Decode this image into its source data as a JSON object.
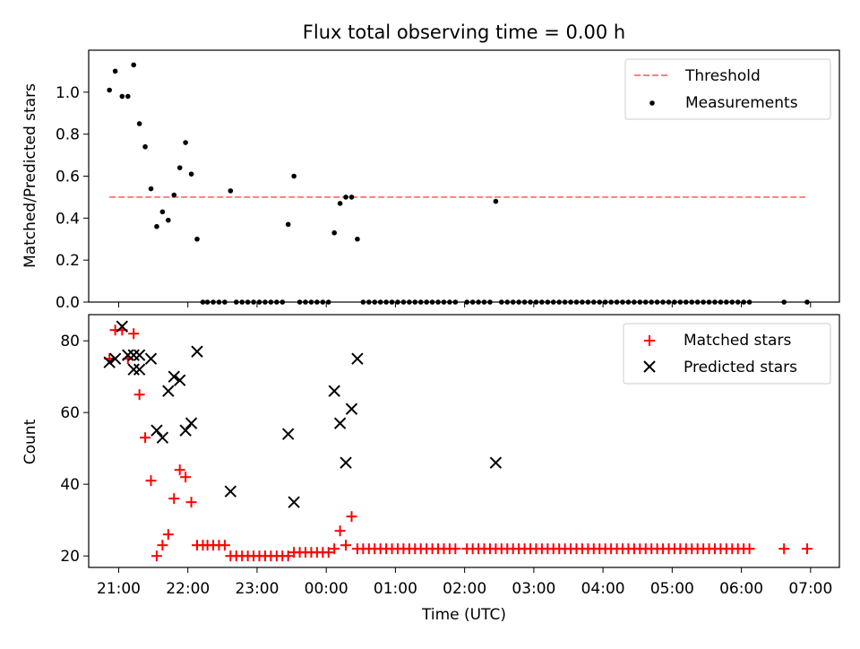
{
  "title": "Flux total observing time = 0.00 h",
  "colors": {
    "threshold": "#ff7f7f",
    "measurement": "#000000",
    "matched": "#ff0000",
    "predicted": "#000000"
  },
  "chart_data": [
    {
      "type": "scatter",
      "ylabel": "Matched/Predicted stars",
      "xlabel": "",
      "ylim": [
        0,
        1.2
      ],
      "xlim": [
        "20:34",
        "07:25"
      ],
      "yticks": [
        "0.0",
        "0.2",
        "0.4",
        "0.6",
        "0.8",
        "1.0"
      ],
      "legend": {
        "placement": "top-right",
        "entries": [
          "Threshold",
          "Measurements"
        ]
      },
      "threshold": {
        "name": "Threshold",
        "y": 0.5,
        "x_start": "20:52",
        "x_end": "06:57"
      },
      "series": [
        {
          "name": "Measurements",
          "points": [
            [
              "20:52",
              1.01
            ],
            [
              "20:57",
              1.1
            ],
            [
              "21:03",
              0.98
            ],
            [
              "21:08",
              0.98
            ],
            [
              "21:13",
              1.13
            ],
            [
              "21:18",
              0.85
            ],
            [
              "21:23",
              0.74
            ],
            [
              "21:28",
              0.54
            ],
            [
              "21:33",
              0.36
            ],
            [
              "21:38",
              0.43
            ],
            [
              "21:43",
              0.39
            ],
            [
              "21:48",
              0.51
            ],
            [
              "21:53",
              0.64
            ],
            [
              "21:58",
              0.76
            ],
            [
              "22:03",
              0.61
            ],
            [
              "22:08",
              0.3
            ],
            [
              "22:13",
              0
            ],
            [
              "22:17",
              0
            ],
            [
              "22:22",
              0
            ],
            [
              "22:27",
              0
            ],
            [
              "22:32",
              0
            ],
            [
              "22:37",
              0.53
            ],
            [
              "22:42",
              0
            ],
            [
              "22:47",
              0
            ],
            [
              "22:52",
              0
            ],
            [
              "22:57",
              0
            ],
            [
              "23:02",
              0
            ],
            [
              "23:07",
              0
            ],
            [
              "23:12",
              0
            ],
            [
              "23:17",
              0
            ],
            [
              "23:22",
              0
            ],
            [
              "23:27",
              0.37
            ],
            [
              "23:32",
              0.6
            ],
            [
              "23:37",
              0
            ],
            [
              "23:42",
              0
            ],
            [
              "23:47",
              0
            ],
            [
              "23:52",
              0
            ],
            [
              "23:57",
              0
            ],
            [
              "00:02",
              0
            ],
            [
              "00:07",
              0.33
            ],
            [
              "00:12",
              0.47
            ],
            [
              "00:17",
              0.5
            ],
            [
              "00:22",
              0.5
            ],
            [
              "00:27",
              0.3
            ],
            [
              "00:32",
              0
            ],
            [
              "00:37",
              0
            ],
            [
              "00:42",
              0
            ],
            [
              "00:47",
              0
            ],
            [
              "00:52",
              0
            ],
            [
              "00:57",
              0
            ],
            [
              "01:02",
              0
            ],
            [
              "01:07",
              0
            ],
            [
              "01:12",
              0
            ],
            [
              "01:17",
              0
            ],
            [
              "01:22",
              0
            ],
            [
              "01:27",
              0
            ],
            [
              "01:32",
              0
            ],
            [
              "01:37",
              0
            ],
            [
              "01:42",
              0
            ],
            [
              "01:47",
              0
            ],
            [
              "01:52",
              0
            ],
            [
              "02:02",
              0
            ],
            [
              "02:07",
              0
            ],
            [
              "02:12",
              0
            ],
            [
              "02:17",
              0
            ],
            [
              "02:22",
              0
            ],
            [
              "02:27",
              0.48
            ],
            [
              "02:32",
              0
            ],
            [
              "02:37",
              0
            ],
            [
              "02:42",
              0
            ],
            [
              "02:47",
              0
            ],
            [
              "02:52",
              0
            ],
            [
              "02:57",
              0
            ],
            [
              "03:02",
              0
            ],
            [
              "03:07",
              0
            ],
            [
              "03:12",
              0
            ],
            [
              "03:17",
              0
            ],
            [
              "03:22",
              0
            ],
            [
              "03:27",
              0
            ],
            [
              "03:32",
              0
            ],
            [
              "03:37",
              0
            ],
            [
              "03:42",
              0
            ],
            [
              "03:47",
              0
            ],
            [
              "03:52",
              0
            ],
            [
              "03:57",
              0
            ],
            [
              "04:02",
              0
            ],
            [
              "04:07",
              0
            ],
            [
              "04:12",
              0
            ],
            [
              "04:17",
              0
            ],
            [
              "04:22",
              0
            ],
            [
              "04:27",
              0
            ],
            [
              "04:32",
              0
            ],
            [
              "04:37",
              0
            ],
            [
              "04:42",
              0
            ],
            [
              "04:47",
              0
            ],
            [
              "04:52",
              0
            ],
            [
              "04:57",
              0
            ],
            [
              "05:02",
              0
            ],
            [
              "05:07",
              0
            ],
            [
              "05:12",
              0
            ],
            [
              "05:17",
              0
            ],
            [
              "05:22",
              0
            ],
            [
              "05:27",
              0
            ],
            [
              "05:32",
              0
            ],
            [
              "05:37",
              0
            ],
            [
              "05:42",
              0
            ],
            [
              "05:47",
              0
            ],
            [
              "05:52",
              0
            ],
            [
              "05:57",
              0
            ],
            [
              "06:02",
              0
            ],
            [
              "06:07",
              0
            ],
            [
              "06:37",
              0
            ],
            [
              "06:57",
              0
            ]
          ]
        }
      ]
    },
    {
      "type": "scatter",
      "ylabel": "Count",
      "xlabel": "Time (UTC)",
      "ylim": [
        16.8,
        87.3
      ],
      "xlim": [
        "20:34",
        "07:25"
      ],
      "yticks": [
        "20",
        "40",
        "60",
        "80"
      ],
      "xticks": [
        "21:00",
        "22:00",
        "23:00",
        "00:00",
        "01:00",
        "02:00",
        "03:00",
        "04:00",
        "05:00",
        "06:00",
        "07:00"
      ],
      "legend": {
        "placement": "top-right",
        "entries": [
          "Matched stars",
          "Predicted stars"
        ]
      },
      "series": [
        {
          "name": "Matched stars",
          "marker": "+",
          "points": [
            [
              "20:52",
              75
            ],
            [
              "20:57",
              83
            ],
            [
              "21:03",
              83
            ],
            [
              "21:08",
              75
            ],
            [
              "21:13",
              82
            ],
            [
              "21:18",
              65
            ],
            [
              "21:23",
              53
            ],
            [
              "21:28",
              41
            ],
            [
              "21:33",
              20
            ],
            [
              "21:38",
              23
            ],
            [
              "21:43",
              26
            ],
            [
              "21:48",
              36
            ],
            [
              "21:53",
              44
            ],
            [
              "21:58",
              42
            ],
            [
              "22:03",
              35
            ],
            [
              "22:08",
              23
            ],
            [
              "22:13",
              23
            ],
            [
              "22:17",
              23
            ],
            [
              "22:22",
              23
            ],
            [
              "22:27",
              23
            ],
            [
              "22:32",
              23
            ],
            [
              "22:37",
              20
            ],
            [
              "22:42",
              20
            ],
            [
              "22:47",
              20
            ],
            [
              "22:52",
              20
            ],
            [
              "22:57",
              20
            ],
            [
              "23:02",
              20
            ],
            [
              "23:07",
              20
            ],
            [
              "23:12",
              20
            ],
            [
              "23:17",
              20
            ],
            [
              "23:22",
              20
            ],
            [
              "23:27",
              20
            ],
            [
              "23:32",
              21
            ],
            [
              "23:37",
              21
            ],
            [
              "23:42",
              21
            ],
            [
              "23:47",
              21
            ],
            [
              "23:52",
              21
            ],
            [
              "23:57",
              21
            ],
            [
              "00:02",
              21
            ],
            [
              "00:07",
              22
            ],
            [
              "00:12",
              27
            ],
            [
              "00:17",
              23
            ],
            [
              "00:22",
              31
            ],
            [
              "00:27",
              22
            ],
            [
              "00:32",
              22
            ],
            [
              "00:37",
              22
            ],
            [
              "00:42",
              22
            ],
            [
              "00:47",
              22
            ],
            [
              "00:52",
              22
            ],
            [
              "00:57",
              22
            ],
            [
              "01:02",
              22
            ],
            [
              "01:07",
              22
            ],
            [
              "01:12",
              22
            ],
            [
              "01:17",
              22
            ],
            [
              "01:22",
              22
            ],
            [
              "01:27",
              22
            ],
            [
              "01:32",
              22
            ],
            [
              "01:37",
              22
            ],
            [
              "01:42",
              22
            ],
            [
              "01:47",
              22
            ],
            [
              "01:52",
              22
            ],
            [
              "02:02",
              22
            ],
            [
              "02:07",
              22
            ],
            [
              "02:12",
              22
            ],
            [
              "02:17",
              22
            ],
            [
              "02:22",
              22
            ],
            [
              "02:27",
              22
            ],
            [
              "02:32",
              22
            ],
            [
              "02:37",
              22
            ],
            [
              "02:42",
              22
            ],
            [
              "02:47",
              22
            ],
            [
              "02:52",
              22
            ],
            [
              "02:57",
              22
            ],
            [
              "03:02",
              22
            ],
            [
              "03:07",
              22
            ],
            [
              "03:12",
              22
            ],
            [
              "03:17",
              22
            ],
            [
              "03:22",
              22
            ],
            [
              "03:27",
              22
            ],
            [
              "03:32",
              22
            ],
            [
              "03:37",
              22
            ],
            [
              "03:42",
              22
            ],
            [
              "03:47",
              22
            ],
            [
              "03:52",
              22
            ],
            [
              "03:57",
              22
            ],
            [
              "04:02",
              22
            ],
            [
              "04:07",
              22
            ],
            [
              "04:12",
              22
            ],
            [
              "04:17",
              22
            ],
            [
              "04:22",
              22
            ],
            [
              "04:27",
              22
            ],
            [
              "04:32",
              22
            ],
            [
              "04:37",
              22
            ],
            [
              "04:42",
              22
            ],
            [
              "04:47",
              22
            ],
            [
              "04:52",
              22
            ],
            [
              "04:57",
              22
            ],
            [
              "05:02",
              22
            ],
            [
              "05:07",
              22
            ],
            [
              "05:12",
              22
            ],
            [
              "05:17",
              22
            ],
            [
              "05:22",
              22
            ],
            [
              "05:27",
              22
            ],
            [
              "05:32",
              22
            ],
            [
              "05:37",
              22
            ],
            [
              "05:42",
              22
            ],
            [
              "05:47",
              22
            ],
            [
              "05:52",
              22
            ],
            [
              "05:57",
              22
            ],
            [
              "06:02",
              22
            ],
            [
              "06:07",
              22
            ],
            [
              "06:37",
              22
            ],
            [
              "06:57",
              22
            ]
          ]
        },
        {
          "name": "Predicted stars",
          "marker": "x",
          "points": [
            [
              "20:52",
              74
            ],
            [
              "20:57",
              75
            ],
            [
              "21:03",
              84
            ],
            [
              "21:08",
              76
            ],
            [
              "21:13",
              72
            ],
            [
              "21:13",
              76
            ],
            [
              "21:18",
              76
            ],
            [
              "21:18",
              72
            ],
            [
              "21:28",
              75
            ],
            [
              "21:33",
              55
            ],
            [
              "21:38",
              53
            ],
            [
              "21:43",
              66
            ],
            [
              "21:48",
              70
            ],
            [
              "21:53",
              69
            ],
            [
              "21:58",
              55
            ],
            [
              "22:03",
              57
            ],
            [
              "22:08",
              77
            ],
            [
              "22:37",
              38
            ],
            [
              "23:27",
              54
            ],
            [
              "23:32",
              35
            ],
            [
              "00:07",
              66
            ],
            [
              "00:12",
              57
            ],
            [
              "00:17",
              46
            ],
            [
              "00:22",
              61
            ],
            [
              "00:27",
              75
            ],
            [
              "02:27",
              46
            ]
          ]
        }
      ]
    }
  ]
}
